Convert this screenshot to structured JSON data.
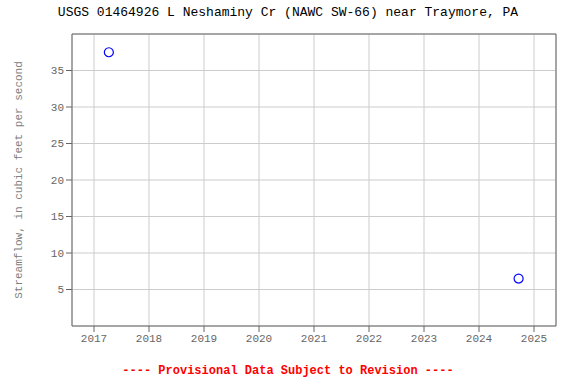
{
  "chart_data": {
    "type": "scatter",
    "title": "USGS 01464926 L Neshaminy Cr (NAWC SW-66) near Traymore, PA",
    "ylabel": "Streamflow, in cubic feet per second",
    "annotations": [
      {
        "text": "---- Provisional Data Subject to Revision ----",
        "color": "#ff0000"
      }
    ],
    "x": [
      2017.27,
      2024.72
    ],
    "values": [
      37.5,
      6.5
    ],
    "color": "#0000ff",
    "marker": "circle",
    "xlim": [
      2016.6,
      2025.4
    ],
    "ylim": [
      0,
      40
    ],
    "xticks": [
      2017,
      2018,
      2019,
      2020,
      2021,
      2022,
      2023,
      2024,
      2025
    ],
    "yticks": [
      5,
      10,
      15,
      20,
      25,
      30,
      35
    ],
    "grid": true
  }
}
